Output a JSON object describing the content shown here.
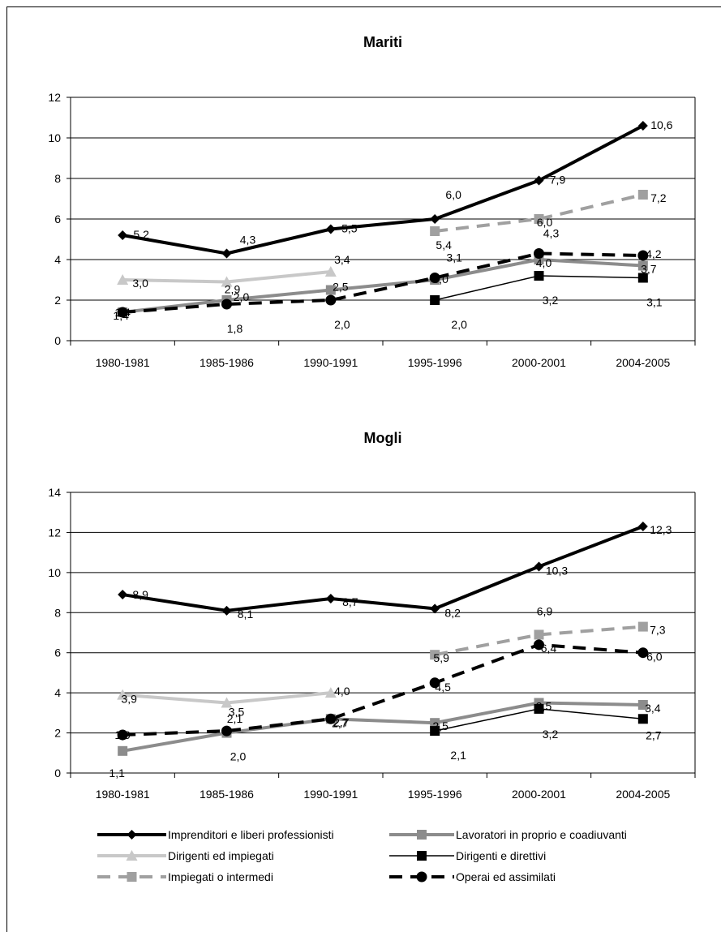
{
  "chart_data": [
    {
      "type": "line",
      "title": "Mariti",
      "categories": [
        "1980-1981",
        "1985-1986",
        "1990-1991",
        "1995-1996",
        "2000-2001",
        "2004-2005"
      ],
      "ylim": [
        0,
        12
      ],
      "yticks": [
        0,
        2,
        4,
        6,
        8,
        10,
        12
      ],
      "grid": true,
      "series": [
        {
          "name": "Imprenditori e liberi professionisti",
          "values": [
            5.2,
            4.3,
            5.5,
            6.0,
            7.9,
            10.6
          ],
          "labels": [
            "5,2",
            "4,3",
            "5,5",
            "6,0",
            "7,9",
            "10,6"
          ]
        },
        {
          "name": "Lavoratori in proprio e coadiuvanti",
          "values": [
            1.4,
            2.0,
            2.5,
            3.0,
            4.0,
            3.7
          ],
          "labels": [
            "1,4",
            "2,0",
            "2,5",
            "3,0",
            "4,0",
            "3,7"
          ]
        },
        {
          "name": "Dirigenti ed impiegati",
          "values": [
            3.0,
            2.9,
            3.4,
            null,
            null,
            null
          ],
          "labels": [
            "3,0",
            "2,9",
            "3,4",
            "",
            "",
            ""
          ]
        },
        {
          "name": "Dirigenti e direttivi",
          "values": [
            null,
            null,
            null,
            2.0,
            3.2,
            3.1
          ],
          "labels": [
            "",
            "",
            "",
            "2,0",
            "3,2",
            "3,1"
          ]
        },
        {
          "name": "Impiegati o intermedi",
          "values": [
            null,
            null,
            null,
            5.4,
            6.0,
            7.2
          ],
          "labels": [
            "",
            "",
            "",
            "5,4",
            "6,0",
            "7,2"
          ]
        },
        {
          "name": "Operai ed assimilati",
          "values": [
            1.4,
            1.8,
            2.0,
            3.1,
            4.3,
            4.2
          ],
          "labels": [
            "1,4",
            "1,8",
            "2,0",
            "3,1",
            "4,3",
            "4,2"
          ]
        }
      ]
    },
    {
      "type": "line",
      "title": "Mogli",
      "categories": [
        "1980-1981",
        "1985-1986",
        "1990-1991",
        "1995-1996",
        "2000-2001",
        "2004-2005"
      ],
      "ylim": [
        0,
        14
      ],
      "yticks": [
        0,
        2,
        4,
        6,
        8,
        10,
        12,
        14
      ],
      "grid": true,
      "series": [
        {
          "name": "Imprenditori e liberi professionisti",
          "values": [
            8.9,
            8.1,
            8.7,
            8.2,
            10.3,
            12.3
          ],
          "labels": [
            "8,9",
            "8,1",
            "8,7",
            "8,2",
            "10,3",
            "12,3"
          ]
        },
        {
          "name": "Lavoratori in proprio e coadiuvanti",
          "values": [
            1.1,
            2.0,
            2.7,
            2.5,
            3.5,
            3.4
          ],
          "labels": [
            "1,1",
            "2,0",
            "2,7",
            "2,5",
            "3,5",
            "3,4"
          ]
        },
        {
          "name": "Dirigenti ed impiegati",
          "values": [
            3.9,
            3.5,
            4.0,
            null,
            null,
            null
          ],
          "labels": [
            "3,9",
            "3,5",
            "4,0",
            "",
            "",
            ""
          ]
        },
        {
          "name": "Dirigenti e direttivi",
          "values": [
            null,
            null,
            null,
            2.1,
            3.2,
            2.7
          ],
          "labels": [
            "",
            "",
            "",
            "2,1",
            "3,2",
            "2,7"
          ]
        },
        {
          "name": "Impiegati o intermedi",
          "values": [
            null,
            null,
            null,
            5.9,
            6.9,
            7.3
          ],
          "labels": [
            "",
            "",
            "",
            "5,9",
            "6,9",
            "7,3"
          ]
        },
        {
          "name": "Operai ed assimilati",
          "values": [
            1.9,
            2.1,
            2.7,
            4.5,
            6.4,
            6.0
          ],
          "labels": [
            "1,9",
            "2,1",
            "2,7",
            "4,5",
            "6,4",
            "6,0"
          ]
        }
      ]
    }
  ],
  "series_style": [
    {
      "color": "#000000",
      "marker": "diamond",
      "dash": "solid",
      "weight": "heavy"
    },
    {
      "color": "#8c8c8c",
      "marker": "square",
      "dash": "solid",
      "weight": "heavy"
    },
    {
      "color": "#c8c8c8",
      "marker": "triangle",
      "dash": "solid",
      "weight": "heavy"
    },
    {
      "color": "#000000",
      "marker": "square",
      "dash": "solid",
      "weight": "thin"
    },
    {
      "color": "#a0a0a0",
      "marker": "square",
      "dash": "dashed",
      "weight": "heavy"
    },
    {
      "color": "#000000",
      "marker": "circle",
      "dash": "dashed",
      "weight": "heavy"
    }
  ],
  "legend": {
    "placement": "bottom",
    "items": [
      "Imprenditori e liberi professionisti",
      "Lavoratori in proprio e coadiuvanti",
      "Dirigenti ed impiegati",
      "Dirigenti e direttivi",
      "Impiegati o intermedi",
      "Operai ed assimilati"
    ]
  }
}
